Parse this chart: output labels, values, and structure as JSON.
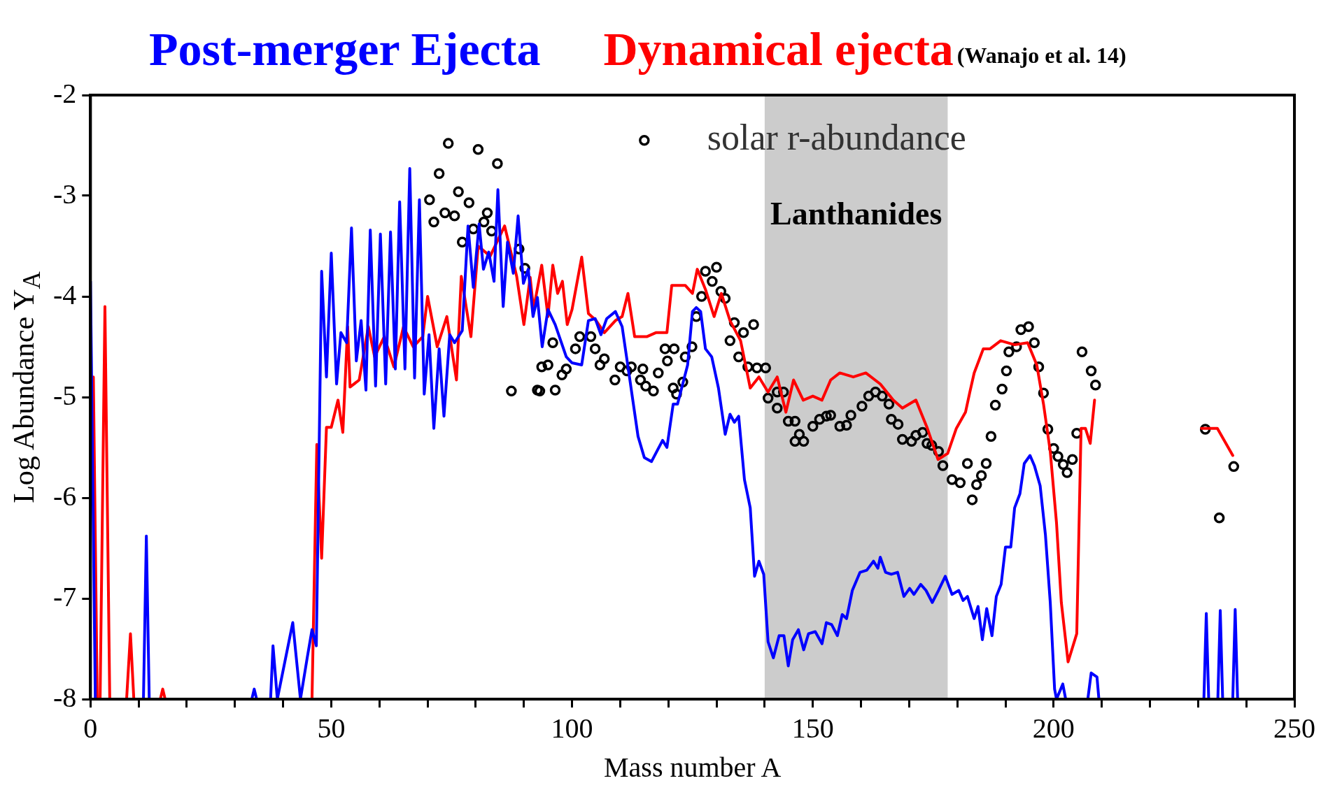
{
  "chart_data": {
    "type": "line",
    "xlabel": "Mass number A",
    "ylabel": "Log Abundance Y$_{A}$",
    "annotations": [
      "(Wanajo et al. 14)"
    ],
    "xlim": [
      0,
      250
    ],
    "xticks": [
      0,
      {
        "value": 10,
        "label": null
      },
      {
        "value": 20,
        "label": null
      },
      {
        "value": 30,
        "label": null
      },
      {
        "value": 40,
        "label": null
      },
      50,
      {
        "value": 60,
        "label": null
      },
      {
        "value": 70,
        "label": null
      },
      {
        "value": 80,
        "label": null
      },
      {
        "value": 90,
        "label": null
      },
      100,
      {
        "value": 110,
        "label": null
      },
      {
        "value": 120,
        "label": null
      },
      {
        "value": 130,
        "label": null
      },
      {
        "value": 140,
        "label": null
      },
      150,
      {
        "value": 160,
        "label": null
      },
      {
        "value": 170,
        "label": null
      },
      {
        "value": 180,
        "label": null
      },
      {
        "value": 190,
        "label": null
      },
      200,
      {
        "value": 210,
        "label": null
      },
      {
        "value": 220,
        "label": null
      },
      {
        "value": 230,
        "label": null
      },
      {
        "value": 240,
        "label": null
      },
      250
    ],
    "ylim": [
      -8,
      -2
    ],
    "yticks": [
      -8,
      -7,
      -6,
      -5,
      -4,
      -3,
      -2
    ],
    "bands": [
      {
        "axis": "x",
        "from": 140,
        "to": 178,
        "label": "Lanthanides",
        "color": "#cccccc"
      }
    ],
    "series": [
      {
        "name": "Post-merger Ejecta",
        "type": "line",
        "color": "#0000ff",
        "marker": "none",
        "line_style": "solid",
        "x": [
          0,
          1,
          5,
          11,
          11.6,
          12.2,
          20,
          33.5,
          34,
          34.5,
          36,
          37.4,
          37.9,
          38.8,
          42,
          43.6,
          45,
          46,
          46.9,
          48,
          49,
          50,
          51.1,
          52,
          53.2,
          54.2,
          55.2,
          56.2,
          57.2,
          58.1,
          59.2,
          60.2,
          61.3,
          62.3,
          63.3,
          64.2,
          65.3,
          66.3,
          67.3,
          68.3,
          69.3,
          70.3,
          71.3,
          72.4,
          73.4,
          74.6,
          75.6,
          77.2,
          78.4,
          79.5,
          80.7,
          81.6,
          82.7,
          83.8,
          84.6,
          85.7,
          86.6,
          87.8,
          88.8,
          89.9,
          90.9,
          91.9,
          92.8,
          93.8,
          95,
          96.5,
          98.8,
          100,
          102,
          103.4,
          104.8,
          106,
          107.2,
          109,
          110.4,
          111.8,
          113.7,
          115,
          116.5,
          118.8,
          119.7,
          121,
          121.9,
          124,
          125,
          125.8,
          126.7,
          127.7,
          129,
          130.4,
          131.8,
          132.8,
          133.7,
          134.6,
          135.8,
          137,
          137.9,
          138.8,
          139.8,
          140.7,
          141.8,
          143,
          144,
          144.9,
          145.8,
          147,
          148.1,
          149.1,
          150.5,
          151.9,
          152.8,
          153.9,
          155.1,
          156.1,
          157,
          158.2,
          159.8,
          161.2,
          162.6,
          163.5,
          164,
          165.1,
          166.3,
          167.6,
          168.9,
          170.1,
          171,
          172.4,
          173.5,
          174.8,
          176.1,
          177.5,
          178.9,
          180.3,
          181.2,
          182.1,
          183.5,
          184.3,
          185.2,
          186.1,
          187.2,
          188.1,
          189.1,
          190,
          191.1,
          191.9,
          193,
          193.9,
          195.1,
          196,
          197.2,
          198.3,
          199.3,
          200.2,
          200.6,
          201.9,
          202.5,
          205,
          207.1,
          207.8,
          209,
          209.4,
          220,
          231.2,
          231.7,
          232.2,
          233,
          234.1,
          234.6,
          235.1,
          236,
          237.2,
          237.7,
          238.2
        ],
        "values": [
          -3.85,
          -8,
          null,
          -8,
          -6.38,
          -8,
          null,
          -8,
          -7.9,
          -8,
          null,
          -8,
          -7.47,
          -8,
          -7.24,
          -8,
          -7.59,
          -7.31,
          -7.47,
          -3.75,
          -4.8,
          -3.57,
          -4.87,
          -4.36,
          -4.46,
          -3.32,
          -4.64,
          -4.24,
          -4.93,
          -3.34,
          -4.89,
          -3.38,
          -4.87,
          -3.36,
          -4.72,
          -3.06,
          -4.72,
          -2.73,
          -4.81,
          -3.04,
          -4.97,
          -4.38,
          -5.31,
          -4.52,
          -5.19,
          -4.38,
          -4.46,
          -4.34,
          -3.3,
          -3.91,
          -3.28,
          -3.73,
          -3.56,
          -3.85,
          -2.94,
          -4.1,
          -3.46,
          -3.77,
          -3.2,
          -3.87,
          -3.73,
          -4.2,
          -4.01,
          -4.5,
          -4.13,
          -4.28,
          -4.6,
          -4.66,
          -4.68,
          -4.24,
          -4.22,
          -4.38,
          -4.22,
          -4.15,
          -4.3,
          -4.76,
          -5.39,
          -5.6,
          -5.64,
          -5.43,
          -5.5,
          -5.07,
          -5.07,
          -4.68,
          -4.15,
          -4.11,
          -4.15,
          -4.52,
          -4.6,
          -4.91,
          -5.37,
          -5.17,
          -5.25,
          -5.19,
          -5.82,
          -6.1,
          -6.78,
          -6.63,
          -6.76,
          -7.43,
          -7.59,
          -7.37,
          -7.37,
          -7.67,
          -7.41,
          -7.31,
          -7.51,
          -7.35,
          -7.33,
          -7.45,
          -7.24,
          -7.26,
          -7.37,
          -7.16,
          -7.2,
          -6.92,
          -6.74,
          -6.72,
          -6.63,
          -6.7,
          -6.59,
          -6.74,
          -6.76,
          -6.74,
          -6.98,
          -6.9,
          -6.96,
          -6.86,
          -6.92,
          -7.04,
          -6.92,
          -6.78,
          -6.96,
          -6.92,
          -7.02,
          -6.98,
          -7.2,
          -7.08,
          -7.41,
          -7.1,
          -7.37,
          -6.98,
          -6.86,
          -6.49,
          -6.49,
          -6.1,
          -5.96,
          -5.66,
          -5.58,
          -5.68,
          -5.88,
          -6.37,
          -7.04,
          -7.9,
          -8,
          -7.85,
          -8,
          null,
          -8,
          -7.74,
          -7.78,
          -8,
          null,
          -8,
          -7.15,
          -8,
          null,
          -8,
          -7.12,
          -8,
          null,
          -8,
          -7.11,
          -8
        ]
      },
      {
        "name": "Dynamical ejecta",
        "type": "line",
        "color": "#ff0000",
        "marker": "none",
        "line_style": "solid",
        "x": [
          0.6,
          1.4,
          2,
          3,
          4,
          5.5,
          7.5,
          8.3,
          9,
          12,
          14.5,
          15,
          15.5,
          30,
          46,
          47,
          48,
          49,
          50,
          51.4,
          52.4,
          53.4,
          53.9,
          55.8,
          57.7,
          59,
          61,
          63,
          65,
          67,
          69,
          70,
          72,
          74,
          76,
          77,
          79,
          80.5,
          83,
          86,
          88.5,
          90,
          91.3,
          92,
          93.7,
          95,
          96,
          97,
          98,
          99,
          100,
          102,
          103.4,
          105,
          106.7,
          109,
          110.4,
          111.6,
          113,
          115.5,
          117.4,
          119.7,
          120.7,
          123.5,
          125,
          126,
          127.7,
          129.5,
          131,
          132.8,
          135,
          137,
          138.8,
          140.7,
          142.6,
          144.4,
          146,
          148,
          150,
          151.9,
          153.7,
          155.6,
          158.4,
          161,
          164,
          166.7,
          168.6,
          171.4,
          173.7,
          176,
          178,
          179.8,
          181.7,
          182.6,
          183.5,
          185.4,
          186.8,
          189,
          191.9,
          194.6,
          196.5,
          197.9,
          199.3,
          200.6,
          201.6,
          203,
          204.8,
          205.7,
          206.6,
          207.6,
          208.5,
          220,
          230.7,
          234,
          237.2
        ],
        "values": [
          -4.8,
          -8,
          -8,
          -4.1,
          -8,
          null,
          -8,
          -7.35,
          -8,
          null,
          -8,
          -7.9,
          -8,
          null,
          -8,
          -5.47,
          -6.6,
          -5.3,
          -5.3,
          -5.03,
          -5.35,
          -4.3,
          -4.9,
          -4.83,
          -4.3,
          -4.6,
          -4.4,
          -4.7,
          -4.3,
          -4.5,
          -4.4,
          -4.0,
          -4.5,
          -4.2,
          -4.83,
          -3.8,
          -4.4,
          -3.5,
          -3.6,
          -3.3,
          -3.8,
          -4.28,
          -3.81,
          -4.13,
          -3.69,
          -4.2,
          -3.69,
          -3.97,
          -3.85,
          -4.28,
          -4.13,
          -3.61,
          -4.17,
          -4.24,
          -4.36,
          -4.24,
          -4.2,
          -3.97,
          -4.4,
          -4.4,
          -4.36,
          -4.36,
          -3.89,
          -3.89,
          -3.97,
          -3.73,
          -3.93,
          -4.2,
          -3.97,
          -4.24,
          -4.44,
          -4.91,
          -4.8,
          -4.95,
          -4.8,
          -5.15,
          -4.83,
          -5.03,
          -4.99,
          -5.03,
          -4.83,
          -4.76,
          -4.8,
          -4.76,
          -4.87,
          -5.03,
          -5.11,
          -5.03,
          -5.3,
          -5.62,
          -5.56,
          -5.31,
          -5.15,
          -4.95,
          -4.76,
          -4.52,
          -4.52,
          -4.44,
          -4.48,
          -4.46,
          -4.68,
          -5.07,
          -5.54,
          -6.25,
          -7.04,
          -7.63,
          -7.35,
          -5.31,
          -5.31,
          -5.46,
          -5.03,
          null,
          -5.31,
          -5.31,
          -5.58
        ]
      },
      {
        "name": "solar r-abundance",
        "type": "scatter",
        "color": "#000000",
        "marker": "circle",
        "x": [
          70.4,
          71.3,
          72.4,
          73.6,
          74.3,
          75.6,
          76.4,
          77.2,
          78.6,
          79.5,
          80.5,
          81.7,
          82.4,
          83.3,
          84.5,
          87.4,
          89,
          90.2,
          92.8,
          93.3,
          93.7,
          95,
          96,
          96.5,
          97.9,
          98.8,
          100.7,
          101.6,
          103.9,
          104.8,
          105.8,
          106.7,
          108.9,
          110,
          111.4,
          112.3,
          114.2,
          114.7,
          115.3,
          116.9,
          117.9,
          119.3,
          119.8,
          121,
          121.2,
          121.7,
          123,
          123.5,
          124.9,
          125.8,
          126.9,
          127.7,
          129.1,
          130,
          130.9,
          131.8,
          132.8,
          133.7,
          134.6,
          135.6,
          136.5,
          137.7,
          138.4,
          140.2,
          140.7,
          142.6,
          142.6,
          143.9,
          144.9,
          146.3,
          146.3,
          147.2,
          148.1,
          150,
          151.4,
          152.8,
          153.7,
          155.6,
          157,
          157.9,
          160.2,
          161.6,
          163,
          164.4,
          165.8,
          166.3,
          167.7,
          168.6,
          170.5,
          171.4,
          172.8,
          173.7,
          174.7,
          176.1,
          177,
          178.9,
          180.6,
          182.1,
          183.1,
          184,
          185,
          186,
          187,
          187.9,
          189.3,
          190.2,
          190.7,
          192.3,
          193.2,
          194.8,
          196,
          196.9,
          197.9,
          198.8,
          200,
          200.9,
          202,
          202.8,
          203.9,
          204.8,
          205.9,
          207.8,
          208.7,
          231.5,
          234.4,
          237.4
        ],
        "values": [
          -3.04,
          -3.26,
          -2.78,
          -3.17,
          -2.48,
          -3.2,
          -2.96,
          -3.46,
          -3.07,
          -3.33,
          -2.54,
          -3.26,
          -3.17,
          -3.35,
          -2.68,
          -4.94,
          -3.53,
          -3.72,
          -4.93,
          -4.94,
          -4.7,
          -4.68,
          -4.46,
          -4.93,
          -4.78,
          -4.72,
          -4.52,
          -4.4,
          -4.4,
          -4.52,
          -4.68,
          -4.62,
          -4.83,
          -4.7,
          -4.74,
          -4.7,
          -4.83,
          -4.72,
          -4.89,
          -4.94,
          -4.76,
          -4.52,
          -4.64,
          -4.91,
          -4.52,
          -4.97,
          -4.85,
          -4.6,
          -4.5,
          -4.2,
          -4.0,
          -3.75,
          -3.85,
          -3.71,
          -3.95,
          -4.02,
          -4.44,
          -4.26,
          -4.6,
          -4.36,
          -4.7,
          -4.28,
          -4.71,
          -4.71,
          -5.01,
          -4.95,
          -5.11,
          -4.95,
          -5.24,
          -5.24,
          -5.44,
          -5.37,
          -5.44,
          -5.29,
          -5.22,
          -5.19,
          -5.18,
          -5.29,
          -5.28,
          -5.18,
          -5.09,
          -4.99,
          -4.95,
          -4.99,
          -5.07,
          -5.22,
          -5.27,
          -5.42,
          -5.44,
          -5.38,
          -5.35,
          -5.46,
          -5.48,
          -5.54,
          -5.68,
          -5.82,
          -5.85,
          -5.66,
          -6.02,
          -5.87,
          -5.78,
          -5.66,
          -5.39,
          -5.08,
          -4.92,
          -4.74,
          -4.55,
          -4.5,
          -4.33,
          -4.3,
          -4.46,
          -4.7,
          -4.96,
          -5.32,
          -5.51,
          -5.59,
          -5.67,
          -5.75,
          -5.62,
          -5.36,
          -4.55,
          -4.74,
          -4.88,
          -5.32,
          -6.2,
          -5.69
        ]
      }
    ]
  }
}
